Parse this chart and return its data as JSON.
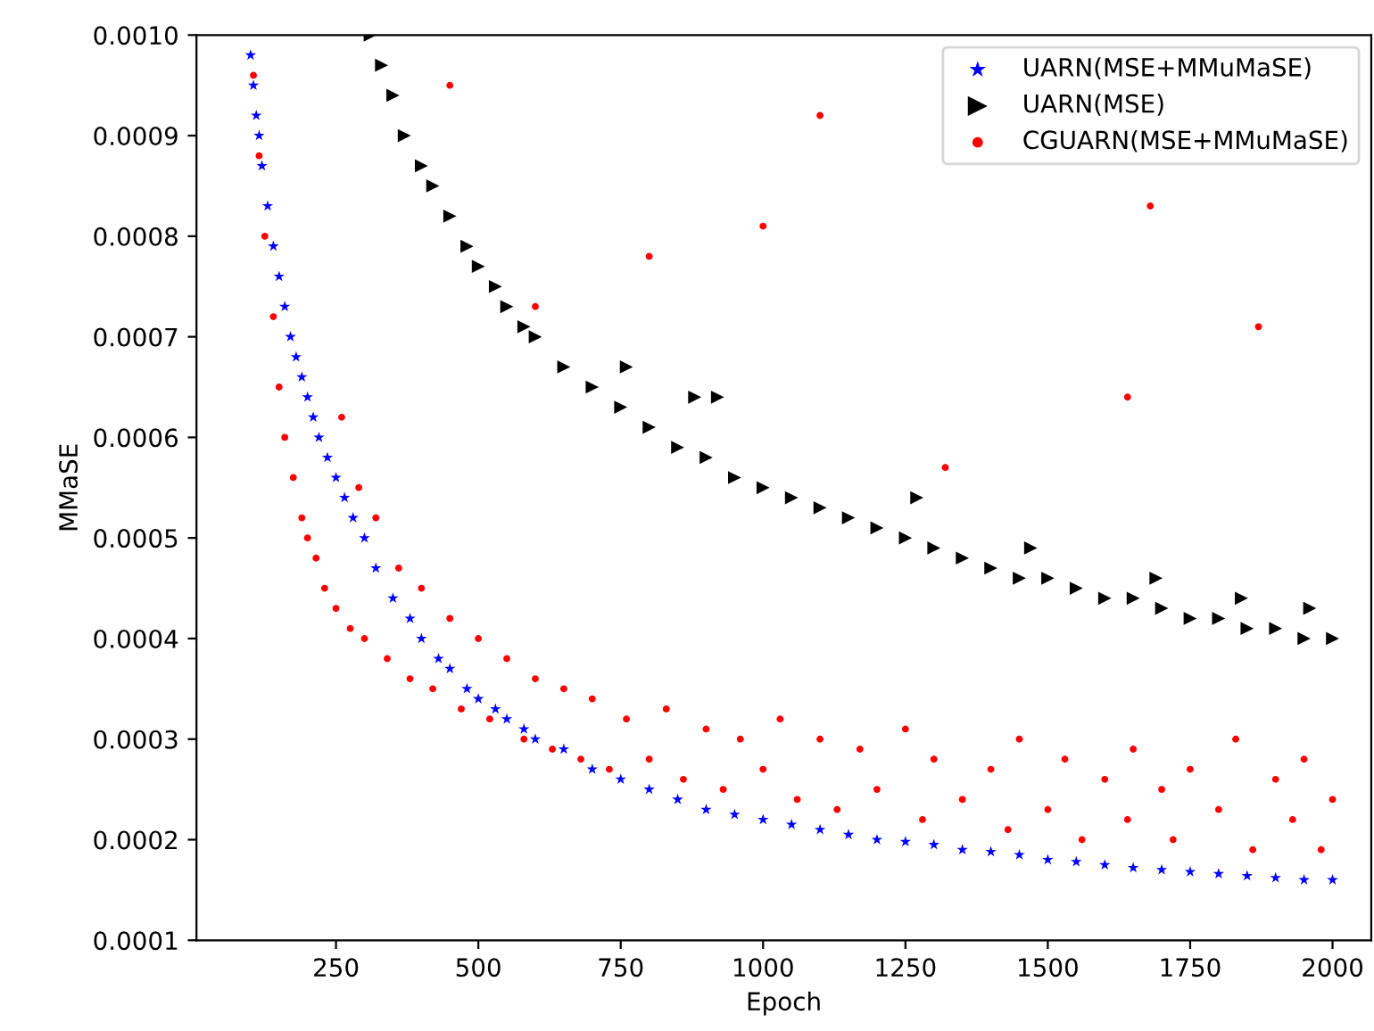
{
  "chart_data": {
    "type": "scatter",
    "xlabel": "Epoch",
    "ylabel": "MMaSE",
    "xlim": [
      5,
      2068
    ],
    "ylim": [
      0.0001,
      0.001
    ],
    "xticks": [
      250,
      500,
      750,
      1000,
      1250,
      1500,
      1750,
      2000
    ],
    "yticks": [
      {
        "value": 0.0001,
        "label": "0.0001"
      },
      {
        "value": 0.0002,
        "label": "0.0002"
      },
      {
        "value": 0.0003,
        "label": "0.0003"
      },
      {
        "value": 0.0004,
        "label": "0.0004"
      },
      {
        "value": 0.0005,
        "label": "0.0005"
      },
      {
        "value": 0.0006,
        "label": "0.0006"
      },
      {
        "value": 0.0007,
        "label": "0.0007"
      },
      {
        "value": 0.0008,
        "label": "0.0008"
      },
      {
        "value": 0.0009,
        "label": "0.0009"
      },
      {
        "value": 0.001,
        "label": "0.0010"
      }
    ],
    "grid": false,
    "legend": "top right",
    "series": [
      {
        "name": "UARN(MSE+MMuMaSE)",
        "color": "#0000ff",
        "marker": "star",
        "x": [
          100,
          105,
          110,
          115,
          120,
          130,
          140,
          150,
          160,
          170,
          180,
          190,
          200,
          210,
          220,
          235,
          250,
          265,
          280,
          300,
          320,
          350,
          380,
          400,
          430,
          450,
          480,
          500,
          530,
          550,
          580,
          600,
          650,
          700,
          750,
          800,
          850,
          900,
          950,
          1000,
          1050,
          1100,
          1150,
          1200,
          1250,
          1300,
          1350,
          1400,
          1450,
          1500,
          1550,
          1600,
          1650,
          1700,
          1750,
          1800,
          1850,
          1900,
          1950,
          2000
        ],
        "values": [
          0.00098,
          0.00095,
          0.00092,
          0.0009,
          0.00087,
          0.00083,
          0.00079,
          0.00076,
          0.00073,
          0.0007,
          0.00068,
          0.00066,
          0.00064,
          0.00062,
          0.0006,
          0.00058,
          0.00056,
          0.00054,
          0.00052,
          0.0005,
          0.00047,
          0.00044,
          0.00042,
          0.0004,
          0.00038,
          0.00037,
          0.00035,
          0.00034,
          0.00033,
          0.00032,
          0.00031,
          0.0003,
          0.00029,
          0.00027,
          0.00026,
          0.00025,
          0.00024,
          0.00023,
          0.000225,
          0.00022,
          0.000215,
          0.00021,
          0.000205,
          0.0002,
          0.000198,
          0.000195,
          0.00019,
          0.000188,
          0.000185,
          0.00018,
          0.000178,
          0.000175,
          0.000172,
          0.00017,
          0.000168,
          0.000166,
          0.000164,
          0.000162,
          0.00016,
          0.00016
        ]
      },
      {
        "name": "UARN(MSE)",
        "color": "#000000",
        "marker": "triangle",
        "x": [
          310,
          330,
          350,
          370,
          400,
          420,
          450,
          480,
          500,
          530,
          550,
          580,
          600,
          650,
          700,
          750,
          800,
          850,
          900,
          950,
          1000,
          1050,
          1100,
          1150,
          1200,
          1250,
          1300,
          1350,
          1400,
          1450,
          1500,
          1550,
          1600,
          1650,
          1700,
          1750,
          1800,
          1850,
          1900,
          1950,
          2000,
          760,
          880,
          920,
          1270,
          1470,
          1690,
          1840,
          1960
        ],
        "values": [
          0.001,
          0.00097,
          0.00094,
          0.0009,
          0.00087,
          0.00085,
          0.00082,
          0.00079,
          0.00077,
          0.00075,
          0.00073,
          0.00071,
          0.0007,
          0.00067,
          0.00065,
          0.00063,
          0.00061,
          0.00059,
          0.00058,
          0.00056,
          0.00055,
          0.00054,
          0.00053,
          0.00052,
          0.00051,
          0.0005,
          0.00049,
          0.00048,
          0.00047,
          0.00046,
          0.00046,
          0.00045,
          0.00044,
          0.00044,
          0.00043,
          0.00042,
          0.00042,
          0.00041,
          0.00041,
          0.0004,
          0.0004,
          0.00067,
          0.00064,
          0.00064,
          0.00054,
          0.00049,
          0.00046,
          0.00044,
          0.00043
        ]
      },
      {
        "name": "CGUARN(MSE+MMuMaSE)",
        "color": "#ff0000",
        "marker": "circle",
        "x": [
          105,
          115,
          125,
          140,
          150,
          160,
          175,
          190,
          200,
          215,
          230,
          250,
          260,
          275,
          290,
          300,
          320,
          340,
          360,
          380,
          400,
          420,
          450,
          470,
          500,
          520,
          550,
          580,
          600,
          630,
          650,
          680,
          700,
          730,
          760,
          800,
          830,
          860,
          900,
          930,
          960,
          1000,
          1030,
          1060,
          1100,
          1130,
          1170,
          1200,
          1250,
          1280,
          1300,
          1350,
          1400,
          1430,
          1450,
          1500,
          1530,
          1560,
          1600,
          1640,
          1650,
          1700,
          1720,
          1750,
          1800,
          1830,
          1860,
          1900,
          1930,
          1950,
          1980,
          2000,
          1100,
          1680,
          1870,
          1000,
          1320,
          1640,
          800,
          600,
          450
        ],
        "values": [
          0.00096,
          0.00088,
          0.0008,
          0.00072,
          0.00065,
          0.0006,
          0.00056,
          0.00052,
          0.0005,
          0.00048,
          0.00045,
          0.00043,
          0.00062,
          0.00041,
          0.00055,
          0.0004,
          0.00052,
          0.00038,
          0.00047,
          0.00036,
          0.00045,
          0.00035,
          0.00042,
          0.00033,
          0.0004,
          0.00032,
          0.00038,
          0.0003,
          0.00036,
          0.00029,
          0.00035,
          0.00028,
          0.00034,
          0.00027,
          0.00032,
          0.00028,
          0.00033,
          0.00026,
          0.00031,
          0.00025,
          0.0003,
          0.00027,
          0.00032,
          0.00024,
          0.0003,
          0.00023,
          0.00029,
          0.00025,
          0.00031,
          0.00022,
          0.00028,
          0.00024,
          0.00027,
          0.00021,
          0.0003,
          0.00023,
          0.00028,
          0.0002,
          0.00026,
          0.00022,
          0.00029,
          0.00025,
          0.0002,
          0.00027,
          0.00023,
          0.0003,
          0.00019,
          0.00026,
          0.00022,
          0.00028,
          0.00019,
          0.00024,
          0.00092,
          0.00083,
          0.00071,
          0.00081,
          0.00057,
          0.00064,
          0.00078,
          0.00073,
          0.00095
        ]
      }
    ]
  }
}
